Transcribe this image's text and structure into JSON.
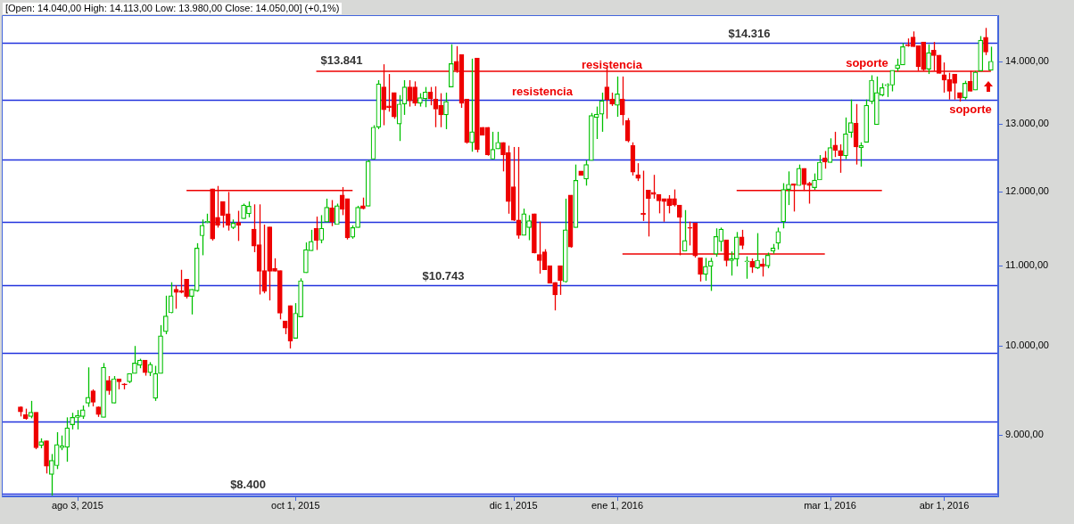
{
  "chart_data": {
    "type": "candlestick",
    "title": "[Open: 14.040,00 High: 14.113,00 Low: 13.980,00 Close: 14.050,00] (+0,1%)",
    "categories": [
      null,
      null,
      null,
      null,
      null,
      null,
      null,
      null,
      null,
      null,
      null,
      "ago 3, 2015",
      null,
      null,
      null,
      null,
      null,
      null,
      null,
      null,
      null,
      null,
      null,
      null,
      null,
      null,
      null,
      null,
      null,
      null,
      null,
      null,
      null,
      null,
      null,
      null,
      null,
      null,
      null,
      null,
      null,
      null,
      null,
      null,
      null,
      null,
      null,
      null,
      null,
      null,
      null,
      null,
      null,
      "oct 1, 2015",
      null,
      null,
      null,
      null,
      null,
      null,
      null,
      null,
      null,
      null,
      null,
      null,
      null,
      null,
      null,
      null,
      null,
      null,
      null,
      null,
      null,
      null,
      null,
      null,
      null,
      null,
      null,
      null,
      null,
      null,
      null,
      null,
      null,
      null,
      null,
      null,
      null,
      null,
      null,
      null,
      null,
      "dic 1, 2015",
      null,
      null,
      null,
      null,
      null,
      null,
      null,
      null,
      null,
      null,
      null,
      null,
      null,
      null,
      null,
      null,
      null,
      null,
      null,
      "ene 1, 2016",
      null,
      null,
      null,
      null,
      null,
      null,
      null,
      null,
      null,
      null,
      null,
      null,
      null,
      null,
      null,
      null,
      null,
      null,
      null,
      null,
      null,
      null,
      null,
      null,
      null,
      null,
      null,
      null,
      null,
      null,
      null,
      null,
      null,
      null,
      null,
      null,
      null,
      null,
      null,
      null,
      "mar 1, 2016",
      null,
      null,
      null,
      null,
      null,
      null,
      null,
      null,
      null,
      null,
      null,
      null,
      null,
      null,
      null,
      null,
      null,
      null,
      null,
      null,
      null,
      "abr 1, 2016",
      null,
      null,
      null,
      null,
      null,
      null,
      null,
      null,
      null
    ],
    "ohlc": [
      [
        9305,
        9310,
        9200,
        9250
      ],
      [
        9220,
        9285,
        9165,
        9174
      ],
      [
        9200,
        9371,
        9180,
        9245
      ],
      [
        9245,
        9245,
        8850,
        8866
      ],
      [
        8890,
        8965,
        8860,
        8930
      ],
      [
        8940,
        8940,
        8600,
        8675
      ],
      [
        8590,
        8800,
        8380,
        8735
      ],
      [
        8680,
        9030,
        8645,
        8900
      ],
      [
        8865,
        8995,
        8840,
        8885
      ],
      [
        8870,
        9190,
        8720,
        9077
      ],
      [
        9110,
        9240,
        9060,
        9190
      ],
      [
        9190,
        9270,
        9060,
        9210
      ],
      [
        9200,
        9320,
        9174,
        9272
      ],
      [
        9345,
        9750,
        9305,
        9410
      ],
      [
        9484,
        9500,
        9310,
        9355
      ],
      [
        9305,
        9310,
        9195,
        9220
      ],
      [
        9190,
        9800,
        9190,
        9750
      ],
      [
        9600,
        9650,
        9440,
        9484
      ],
      [
        9345,
        9650,
        9345,
        9620
      ],
      [
        9620,
        9620,
        9500,
        9585
      ],
      [
        9555,
        9570,
        9500,
        9555
      ],
      [
        9585,
        9680,
        9570,
        9680
      ],
      [
        9680,
        10000,
        9680,
        9800
      ],
      [
        9775,
        9850,
        9740,
        9835
      ],
      [
        9835,
        9835,
        9655,
        9690
      ],
      [
        9690,
        9810,
        9650,
        9785
      ],
      [
        9400,
        9768,
        9371,
        9680
      ],
      [
        9680,
        10250,
        9680,
        10120
      ],
      [
        10170,
        10613,
        10140,
        10360
      ],
      [
        10400,
        10783,
        10395,
        10613
      ],
      [
        10693,
        10743,
        10450,
        10653
      ],
      [
        10673,
        10943,
        10643,
        10653
      ],
      [
        10823,
        10823,
        10578,
        10603
      ],
      [
        10603,
        10693,
        10380,
        10693
      ],
      [
        10673,
        11293,
        10663,
        11228
      ],
      [
        11393,
        11614,
        11133,
        11534
      ],
      [
        11574,
        11694,
        11564,
        11589
      ],
      [
        12044,
        12044,
        11328,
        11348
      ],
      [
        11644,
        12084,
        11503,
        11533
      ],
      [
        11864,
        11864,
        11503,
        11669
      ],
      [
        11694,
        11999,
        11463,
        11533
      ],
      [
        11503,
        11614,
        11483,
        11564
      ],
      [
        11574,
        11734,
        11323,
        11534
      ],
      [
        11624,
        11834,
        11624,
        11814
      ],
      [
        11694,
        11864,
        11644,
        11799
      ],
      [
        11483,
        11824,
        11173,
        11253
      ],
      [
        11273,
        11824,
        10628,
        10923
      ],
      [
        10933,
        11544,
        10643,
        10668
      ],
      [
        11513,
        11513,
        10553,
        10923
      ],
      [
        10963,
        11093,
        10923,
        10923
      ],
      [
        10933,
        10933,
        10320,
        10395
      ],
      [
        10300,
        10300,
        10140,
        10215
      ],
      [
        10490,
        10490,
        9970,
        10060
      ],
      [
        10090,
        10520,
        10090,
        10395
      ],
      [
        10350,
        10833,
        10350,
        10803
      ],
      [
        10903,
        11303,
        10903,
        11208
      ],
      [
        11193,
        11473,
        11193,
        11318
      ],
      [
        11493,
        11654,
        11203,
        11328
      ],
      [
        11333,
        11674,
        11293,
        11493
      ],
      [
        11579,
        11904,
        11579,
        11784
      ],
      [
        11774,
        11884,
        11523,
        11579
      ],
      [
        11544,
        11834,
        11544,
        11804
      ],
      [
        11954,
        12068,
        11674,
        11754
      ],
      [
        11904,
        11904,
        11343,
        11363
      ],
      [
        11373,
        11533,
        11353,
        11503
      ],
      [
        11503,
        11804,
        11503,
        11784
      ],
      [
        11804,
        11919,
        11754,
        11764
      ],
      [
        11799,
        12464,
        11799,
        12444
      ],
      [
        12474,
        12984,
        12474,
        12954
      ],
      [
        12954,
        13695,
        12924,
        13635
      ],
      [
        13585,
        13955,
        12984,
        13224
      ],
      [
        13284,
        13795,
        13194,
        13259
      ],
      [
        13495,
        13495,
        13084,
        13114
      ],
      [
        13004,
        13455,
        12744,
        13314
      ],
      [
        13314,
        13695,
        13144,
        13585
      ],
      [
        13585,
        13695,
        13274,
        13365
      ],
      [
        13585,
        13675,
        13284,
        13324
      ],
      [
        13325,
        13485,
        13274,
        13415
      ],
      [
        13395,
        13585,
        13264,
        13505
      ],
      [
        13505,
        13585,
        13294,
        13395
      ],
      [
        13395,
        13595,
        12954,
        13234
      ],
      [
        13294,
        13485,
        12954,
        13144
      ],
      [
        13144,
        13495,
        12924,
        13355
      ],
      [
        13585,
        14288,
        13585,
        13965
      ],
      [
        14005,
        14258,
        13815,
        13855
      ],
      [
        14118,
        14118,
        13254,
        13325
      ],
      [
        13395,
        13395,
        12704,
        12724
      ],
      [
        12719,
        14048,
        12584,
        12884
      ],
      [
        14058,
        14058,
        12574,
        12614
      ],
      [
        12954,
        12954,
        12834,
        12834
      ],
      [
        12954,
        12954,
        12524,
        12539
      ],
      [
        12474,
        12884,
        12474,
        12619
      ],
      [
        12624,
        12884,
        12624,
        12724
      ],
      [
        12724,
        12724,
        12294,
        12539
      ],
      [
        12569,
        12674,
        11694,
        11864
      ],
      [
        12074,
        12654,
        11594,
        11604
      ],
      [
        11609,
        12654,
        11353,
        11398
      ],
      [
        11398,
        11764,
        11398,
        11694
      ],
      [
        11503,
        11674,
        11333,
        11599
      ],
      [
        11694,
        11694,
        11158,
        11163
      ],
      [
        11143,
        11584,
        10893,
        11063
      ],
      [
        11178,
        11213,
        10943,
        10943
      ],
      [
        10998,
        10998,
        10768,
        10768
      ],
      [
        10783,
        10783,
        10430,
        10623
      ],
      [
        10998,
        10998,
        10623,
        10803
      ],
      [
        10788,
        11904,
        10778,
        11473
      ],
      [
        11954,
        11954,
        11233,
        11243
      ],
      [
        11503,
        12394,
        11503,
        12164
      ],
      [
        12299,
        12299,
        12234,
        12234
      ],
      [
        12184,
        12454,
        12089,
        12394
      ],
      [
        12454,
        13174,
        12454,
        13134
      ],
      [
        13104,
        13274,
        12774,
        13154
      ],
      [
        13154,
        13495,
        12884,
        13365
      ],
      [
        13585,
        13905,
        13084,
        13385
      ],
      [
        13395,
        13495,
        13284,
        13314
      ],
      [
        13294,
        13755,
        13114,
        13475
      ],
      [
        13395,
        13755,
        12984,
        13144
      ],
      [
        13054,
        13094,
        12724,
        12744
      ],
      [
        12674,
        12724,
        12234,
        12284
      ],
      [
        12244,
        12414,
        12154,
        12194
      ],
      [
        11699,
        12304,
        11594,
        11679
      ],
      [
        12024,
        12024,
        11383,
        11904
      ],
      [
        11994,
        12244,
        11904,
        11964
      ],
      [
        11964,
        11964,
        11699,
        11874
      ],
      [
        11904,
        11904,
        11584,
        11864
      ],
      [
        11904,
        11954,
        11699,
        11804
      ],
      [
        11904,
        12034,
        11794,
        11814
      ],
      [
        11814,
        11814,
        11133,
        11644
      ],
      [
        11188,
        11744,
        11188,
        11328
      ],
      [
        11503,
        11584,
        11263,
        11493
      ],
      [
        11564,
        11564,
        11103,
        11123
      ],
      [
        11103,
        11103,
        10793,
        10883
      ],
      [
        10883,
        11098,
        10803,
        10988
      ],
      [
        10988,
        11098,
        10673,
        11058
      ],
      [
        11148,
        11493,
        11113,
        11383
      ],
      [
        11313,
        11503,
        11183,
        11483
      ],
      [
        11338,
        11338,
        10988,
        11063
      ],
      [
        11063,
        11183,
        10868,
        11090
      ],
      [
        11083,
        11443,
        10988,
        11378
      ],
      [
        11378,
        11473,
        11213,
        11263
      ],
      [
        11048,
        11118,
        10828,
        11058
      ],
      [
        11053,
        11090,
        10903,
        10978
      ],
      [
        10968,
        11428,
        10953,
        11068
      ],
      [
        11018,
        11090,
        10856,
        10983
      ],
      [
        10993,
        11168,
        10963,
        11133
      ],
      [
        11188,
        11283,
        11153,
        11228
      ],
      [
        11293,
        11503,
        11209,
        11451
      ],
      [
        11584,
        12124,
        11493,
        12034
      ],
      [
        12034,
        12294,
        11814,
        12109
      ],
      [
        12114,
        12114,
        11724,
        12089
      ],
      [
        12089,
        12394,
        12089,
        12339
      ],
      [
        12339,
        12339,
        12014,
        12104
      ],
      [
        12124,
        12144,
        11834,
        12089
      ],
      [
        12059,
        12264,
        12029,
        12169
      ],
      [
        12169,
        12534,
        12169,
        12429
      ],
      [
        12494,
        12594,
        12334,
        12429
      ],
      [
        12424,
        12784,
        12424,
        12644
      ],
      [
        12684,
        12884,
        12504,
        12604
      ],
      [
        12604,
        12694,
        12274,
        12524
      ],
      [
        12524,
        13104,
        12474,
        12854
      ],
      [
        12874,
        13385,
        12794,
        13024
      ],
      [
        13014,
        13314,
        12394,
        12654
      ],
      [
        12644,
        12724,
        12364,
        12674
      ],
      [
        12724,
        13385,
        12724,
        13294
      ],
      [
        13355,
        13775,
        13314,
        13695
      ],
      [
        12994,
        13755,
        12994,
        13495
      ],
      [
        13455,
        13645,
        13435,
        13575
      ],
      [
        13605,
        13645,
        13425,
        13625
      ],
      [
        13615,
        13855,
        13515,
        13855
      ],
      [
        13885,
        14048,
        13835,
        13945
      ],
      [
        13945,
        14308,
        13945,
        14248
      ],
      [
        14283,
        14388,
        14248,
        14263
      ],
      [
        14413,
        14508,
        14248,
        14248
      ],
      [
        14263,
        14263,
        13845,
        13915
      ],
      [
        14328,
        14328,
        13845,
        13865
      ],
      [
        13875,
        14288,
        13795,
        14148
      ],
      [
        14188,
        14328,
        13845,
        14098
      ],
      [
        14108,
        14108,
        13805,
        13805
      ],
      [
        13785,
        13985,
        13495,
        13695
      ],
      [
        13705,
        13815,
        13385,
        13515
      ],
      [
        13795,
        13795,
        13385,
        13645
      ],
      [
        13495,
        13495,
        13355,
        13405
      ],
      [
        13415,
        13685,
        13385,
        13645
      ],
      [
        13675,
        13845,
        13515,
        13515
      ],
      [
        13535,
        13845,
        13535,
        13825
      ],
      [
        13845,
        14428,
        13845,
        14358
      ],
      [
        14408,
        14568,
        14108,
        14158
      ],
      [
        13855,
        14248,
        13855,
        14005
      ]
    ],
    "series": [
      {
        "type": "line",
        "color": "#ee0000",
        "values": [
          null,
          null,
          null,
          null,
          null,
          null,
          null,
          null,
          null,
          null,
          null,
          null,
          null,
          null,
          null,
          null,
          null,
          null,
          null,
          null,
          null,
          null,
          null,
          null,
          null,
          null,
          null,
          null,
          null,
          null,
          null,
          null,
          null,
          null,
          null,
          null,
          null,
          null,
          null,
          null,
          null,
          null,
          null,
          null,
          null,
          null,
          null,
          null,
          null,
          null,
          null,
          null,
          null,
          null,
          null,
          null,
          null,
          13841,
          13841,
          13841,
          13841,
          13841,
          13841,
          13841,
          13841,
          13841,
          13841,
          13841,
          13841,
          13841,
          13841,
          13841,
          13841,
          13841,
          13841,
          13841,
          13841,
          13841,
          13841,
          13841,
          13841,
          13841,
          13841,
          13841,
          13841,
          13841,
          13841,
          13841,
          13841,
          13841,
          13841,
          13841,
          13841,
          13841,
          13841,
          13841,
          13841,
          13841,
          13841,
          13841,
          13841,
          13841,
          13841,
          13841,
          13841,
          13841,
          13841,
          13841,
          13841,
          13841,
          13841,
          13841,
          13841,
          13841,
          13841,
          13841,
          13841,
          13841,
          13841,
          13841,
          13841,
          13841,
          13841,
          13841,
          13841,
          13841,
          13841,
          13841,
          13841,
          13841,
          13841,
          13841,
          13841,
          13841,
          13841,
          13841,
          13841,
          13841,
          13841,
          13841,
          13841,
          13841,
          13841,
          13841,
          13841,
          13841,
          13841,
          13841,
          13841,
          13841,
          13841,
          13841,
          13841,
          13841,
          13841,
          13841,
          13841,
          13841,
          13841,
          13841,
          13841,
          13841,
          13841,
          13841,
          13841,
          13841,
          13841,
          13841,
          13841,
          13841,
          13841,
          13841,
          13841,
          13841,
          13841,
          13841,
          13841,
          13841,
          13841,
          13841,
          13841,
          13841,
          13841,
          13841,
          13841,
          13841,
          13841,
          13841
        ]
      },
      {
        "type": "line",
        "color": "#ee0000",
        "values": [
          null,
          null,
          null,
          null,
          null,
          null,
          null,
          null,
          null,
          null,
          null,
          null,
          null,
          null,
          null,
          null,
          null,
          null,
          null,
          null,
          null,
          null,
          null,
          null,
          null,
          null,
          null,
          null,
          null,
          null,
          null,
          null,
          12020,
          12020,
          12020,
          12020,
          12020,
          12020,
          12020,
          12020,
          12020,
          12020,
          12020,
          12020,
          12020,
          12020,
          12020,
          12020,
          12020,
          12020,
          12020,
          12020,
          12020,
          12020,
          12020,
          12020,
          12020,
          12020,
          12020,
          12020,
          12020,
          12020,
          12020,
          12020,
          12020,
          null,
          null,
          null,
          null,
          null,
          null,
          null,
          null,
          null,
          null,
          null,
          null,
          null,
          null,
          null,
          null,
          null,
          null,
          null,
          null,
          null,
          null,
          null,
          null,
          null,
          null,
          null,
          null,
          null,
          null,
          null,
          null,
          null,
          null,
          null,
          null,
          null,
          null,
          null,
          null,
          null,
          null,
          null,
          null,
          null,
          null,
          null,
          null,
          null,
          null,
          null,
          null,
          null,
          null,
          null,
          null,
          null,
          null,
          null,
          null,
          null,
          null,
          null,
          null,
          null,
          null,
          null,
          null,
          null,
          null,
          null,
          null,
          null,
          12020,
          12020,
          12020,
          12020,
          12020,
          12020,
          12020,
          12020,
          12020,
          12020,
          12020,
          12020,
          12020,
          12020,
          12020,
          12020,
          12020,
          12020,
          12020,
          12020,
          12020,
          12020,
          12020,
          12020,
          12020,
          12020,
          12020,
          12020,
          12020,
          null,
          null,
          null,
          null,
          null,
          null,
          null,
          null,
          null,
          null,
          null,
          null,
          null,
          null,
          null,
          null,
          null,
          null,
          null,
          null,
          null
        ]
      },
      {
        "type": "line",
        "color": "#ee0000",
        "values": [
          null,
          null,
          null,
          null,
          null,
          null,
          null,
          null,
          null,
          null,
          null,
          null,
          null,
          null,
          null,
          null,
          null,
          null,
          null,
          null,
          null,
          null,
          null,
          null,
          null,
          null,
          null,
          null,
          null,
          null,
          null,
          null,
          null,
          null,
          null,
          null,
          null,
          null,
          null,
          null,
          null,
          null,
          null,
          null,
          null,
          null,
          null,
          null,
          null,
          null,
          null,
          null,
          null,
          null,
          null,
          null,
          null,
          null,
          null,
          null,
          null,
          null,
          null,
          null,
          null,
          null,
          null,
          null,
          null,
          null,
          null,
          null,
          null,
          null,
          null,
          null,
          null,
          null,
          null,
          null,
          null,
          null,
          null,
          null,
          null,
          null,
          null,
          null,
          null,
          null,
          null,
          null,
          null,
          null,
          null,
          null,
          null,
          null,
          null,
          null,
          null,
          null,
          null,
          null,
          null,
          null,
          null,
          null,
          null,
          null,
          null,
          null,
          null,
          null,
          null,
          null,
          11150,
          11150,
          11150,
          11150,
          11150,
          11150,
          11150,
          11150,
          11150,
          11150,
          11150,
          11150,
          11150,
          11150,
          11150,
          11150,
          11150,
          11150,
          11150,
          11150,
          11150,
          11150,
          11150,
          11150,
          11150,
          11150,
          11150,
          11150,
          11150,
          11150,
          11150,
          11150,
          11150,
          11150,
          11150,
          11150,
          11150,
          11150,
          11150,
          11150,
          null,
          null,
          null,
          null,
          null,
          null,
          null,
          null,
          null,
          null,
          null,
          null,
          null,
          null,
          null,
          null,
          null,
          null,
          null,
          null,
          null,
          null,
          null,
          null,
          null,
          null,
          null,
          null,
          null,
          null,
          null,
          null
        ]
      }
    ],
    "ylim": [
      8370,
      14790
    ],
    "yticks": [
      {
        "value": 9000,
        "label": "9.000,00"
      },
      {
        "value": 10000,
        "label": "10.000,00"
      },
      {
        "value": 11000,
        "label": "11.000,00"
      },
      {
        "value": 12000,
        "label": "12.000,00"
      },
      {
        "value": 13000,
        "label": "13.000,00"
      },
      {
        "value": 14000,
        "label": "14.000,00"
      }
    ],
    "log": "y",
    "ref_lines": [
      {
        "axis": "y",
        "value": 14316,
        "label": "$14.316",
        "color": "#2233dd"
      },
      {
        "axis": "y",
        "value": 13383,
        "color": "#2233dd"
      },
      {
        "axis": "y",
        "value": 12467,
        "color": "#2233dd"
      },
      {
        "axis": "y",
        "value": 11576,
        "color": "#2233dd"
      },
      {
        "axis": "y",
        "value": 10743,
        "label": "$10.743",
        "color": "#2233dd"
      },
      {
        "axis": "y",
        "value": 9922,
        "color": "#2233dd"
      },
      {
        "axis": "y",
        "value": 9143,
        "color": "#2233dd"
      },
      {
        "axis": "y",
        "value": 8400,
        "label": "$8.400",
        "color": "#2233dd"
      }
    ],
    "annotations": [
      "$13.841",
      "resistencia",
      "resistencia",
      "soporte",
      "soporte"
    ]
  }
}
